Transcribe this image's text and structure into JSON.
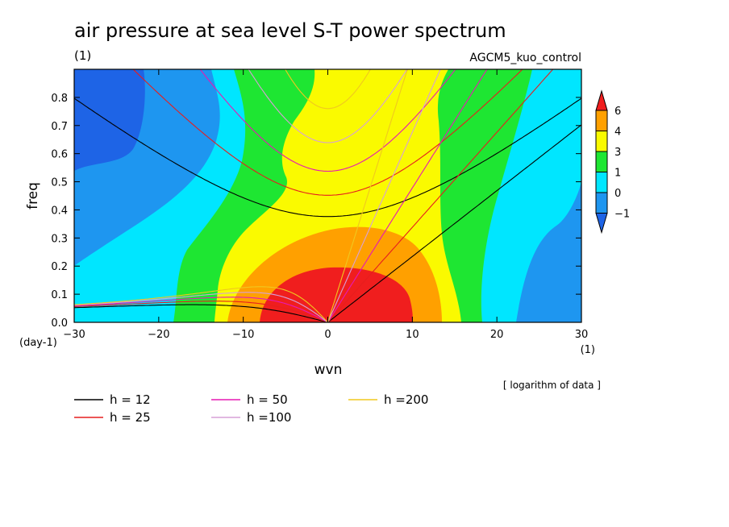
{
  "chart_data": {
    "type": "heatmap",
    "title": "air pressure at sea level S-T power spectrum",
    "subtitle_left": "(1)",
    "subtitle_right": "AGCM5_kuo_control",
    "xlabel": "wvn",
    "ylabel": "freq",
    "x_unit": "(1)",
    "y_unit": "(day-1)",
    "xlim": [
      -30,
      30
    ],
    "ylim": [
      0,
      0.9
    ],
    "x_ticks": [
      -30,
      -20,
      -10,
      0,
      10,
      20,
      30
    ],
    "x_tick_labels": [
      "-30",
      "-20",
      "-10",
      "0",
      "10",
      "20",
      "30"
    ],
    "y_ticks": [
      0.0,
      0.1,
      0.2,
      0.3,
      0.4,
      0.5,
      0.6,
      0.7,
      0.8
    ],
    "y_tick_labels": [
      "0.0",
      "0.1",
      "0.2",
      "0.3",
      "0.4",
      "0.5",
      "0.6",
      "0.7",
      "0.8"
    ],
    "note": "[ logarithm of data ]",
    "colorbar": {
      "levels": [
        -1,
        0,
        1,
        3,
        4,
        6
      ],
      "labels": [
        "−1",
        "0",
        "1",
        "3",
        "4",
        "6"
      ],
      "colors": [
        "#1e64e6",
        "#1e96f0",
        "#00e6ff",
        "#1ee632",
        "#fafa00",
        "#ffa000",
        "#f01e1e"
      ]
    },
    "field": {
      "description": "log power spectrum contours",
      "peak": {
        "wvn": 2,
        "freq": 0.05,
        "value": 6.5
      },
      "minimum": {
        "wvn": -28,
        "freq": 0.75,
        "value": -1.3
      }
    },
    "dispersion_curves": [
      {
        "h": 12,
        "label": "h = 12",
        "color": "#000000"
      },
      {
        "h": 25,
        "label": "h = 25",
        "color": "#e61e1e"
      },
      {
        "h": 50,
        "label": "h = 50",
        "color": "#e619b4"
      },
      {
        "h": 100,
        "label": "h =100",
        "color": "#d7a0d7"
      },
      {
        "h": 200,
        "label": "h =200",
        "color": "#f0c81e"
      }
    ]
  }
}
